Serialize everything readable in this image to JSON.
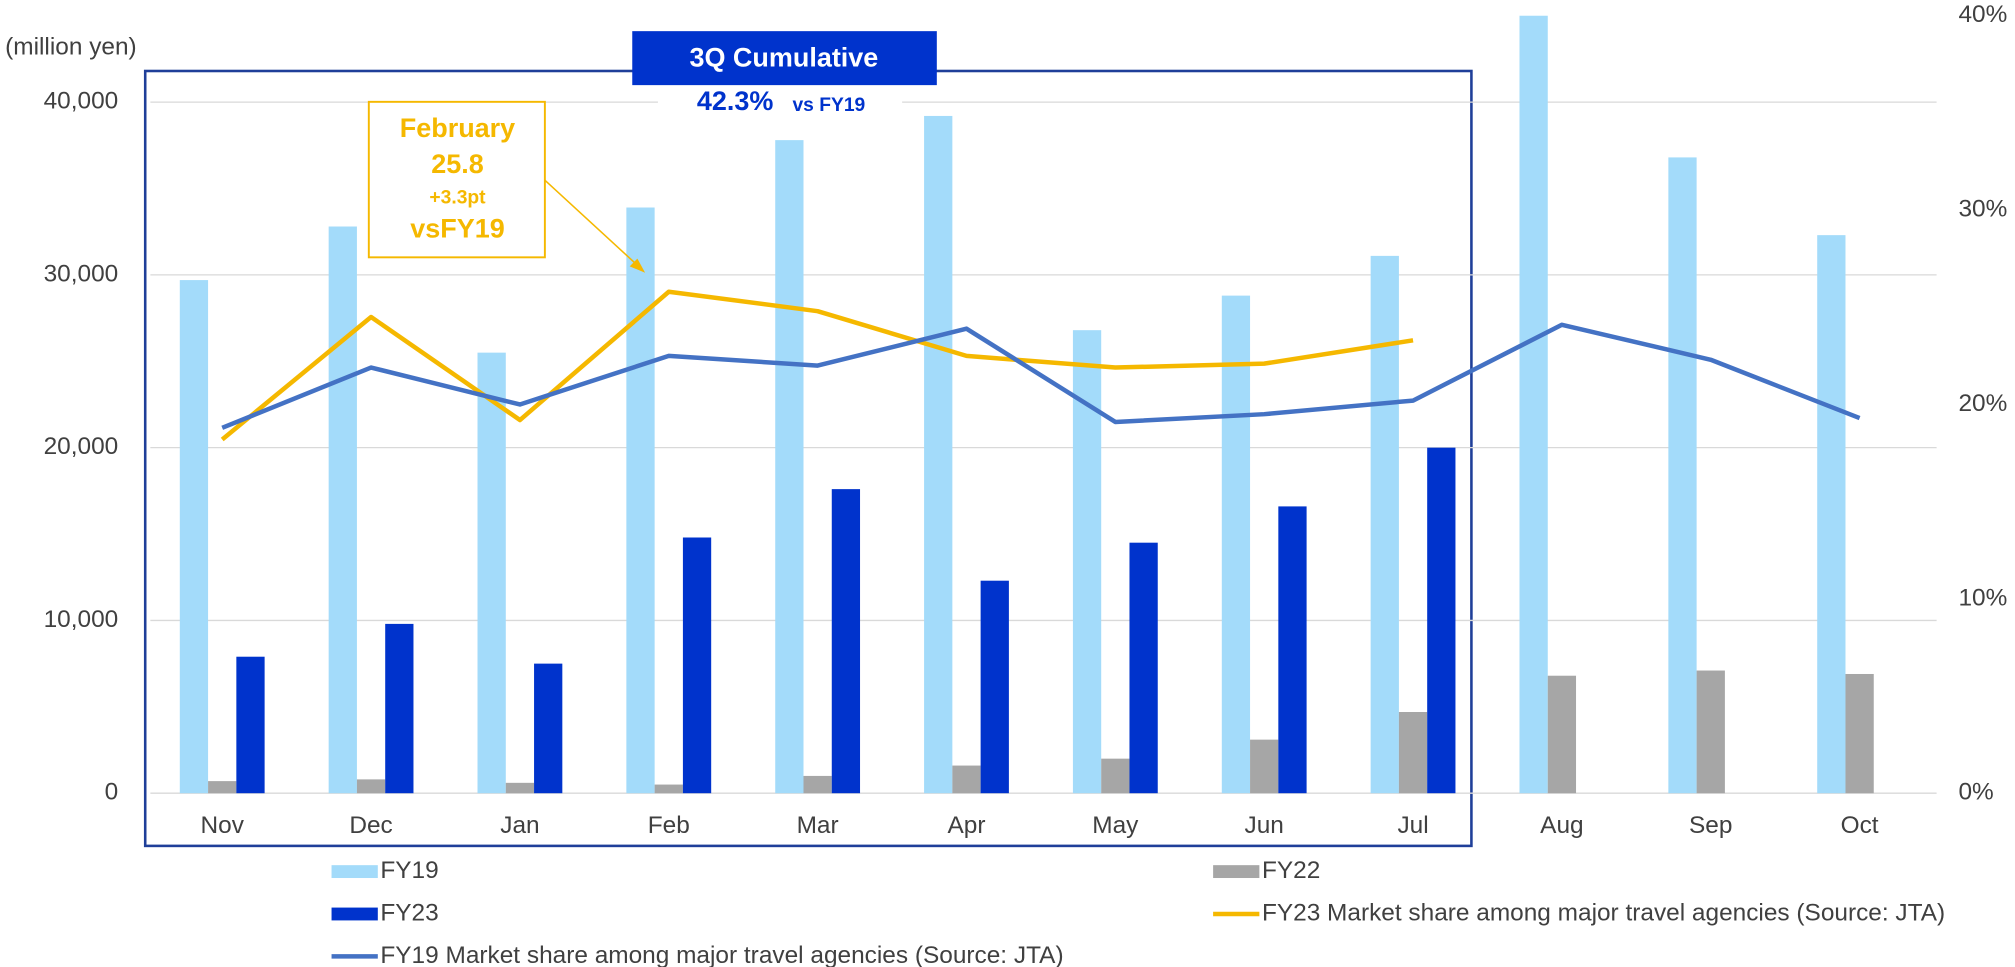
{
  "chart_data": {
    "type": "bar",
    "y_label": "(million yen)",
    "categories": [
      "Nov",
      "Dec",
      "Jan",
      "Feb",
      "Mar",
      "Apr",
      "May",
      "Jun",
      "Jul",
      "Aug",
      "Sep",
      "Oct"
    ],
    "series": [
      {
        "name": "FY19",
        "color": "#a3dbfa",
        "values": [
          29700,
          32800,
          25500,
          33900,
          37800,
          39200,
          26800,
          28800,
          31100,
          45000,
          36800,
          32300
        ]
      },
      {
        "name": "FY22",
        "color": "#a6a6a6",
        "values": [
          700,
          800,
          600,
          500,
          1000,
          1600,
          2000,
          3100,
          4700,
          6800,
          7100,
          6900
        ]
      },
      {
        "name": "FY23",
        "color": "#0033cc",
        "values": [
          7900,
          9800,
          7500,
          14800,
          17600,
          12300,
          14500,
          16600,
          20000,
          null,
          null,
          null
        ]
      },
      {
        "name": "FY23 Market share among major travel agencies (Source: JTA)",
        "type": "line",
        "axis": "y2",
        "color": "#f5b800",
        "values": [
          18.2,
          24.5,
          19.2,
          25.8,
          24.8,
          22.5,
          21.9,
          22.1,
          23.3,
          null,
          null,
          null
        ]
      },
      {
        "name": "FY19 Market share among major travel agencies (Source: JTA)",
        "type": "line",
        "axis": "y2",
        "color": "#4472c4",
        "values": [
          18.8,
          21.9,
          20.0,
          22.5,
          22.0,
          23.9,
          19.1,
          19.5,
          20.2,
          24.1,
          22.3,
          19.3
        ]
      }
    ],
    "ylim": [
      0,
      45000
    ],
    "yticks": [
      0,
      {
        "value": 10000,
        "label": "10,000"
      },
      {
        "value": 20000,
        "label": "20,000"
      },
      {
        "value": 30000,
        "label": "30,000"
      },
      {
        "value": 40000,
        "label": "40,000"
      }
    ],
    "y2lim": [
      0,
      40
    ],
    "y2ticks": [
      {
        "value": 0,
        "label": "0%"
      },
      {
        "value": 10,
        "label": "10%"
      },
      {
        "value": 20,
        "label": "20%"
      },
      {
        "value": 30,
        "label": "30%"
      },
      {
        "value": 40,
        "label": "40%"
      }
    ],
    "grid": true,
    "legend": "bottom",
    "annotations": {
      "box_title": "3Q Cumulative",
      "cumulative": "42.3%",
      "cumulative_note": "vs FY19",
      "callout": [
        "February",
        "25.8",
        "+3.3pt",
        "vsFY19"
      ]
    }
  }
}
